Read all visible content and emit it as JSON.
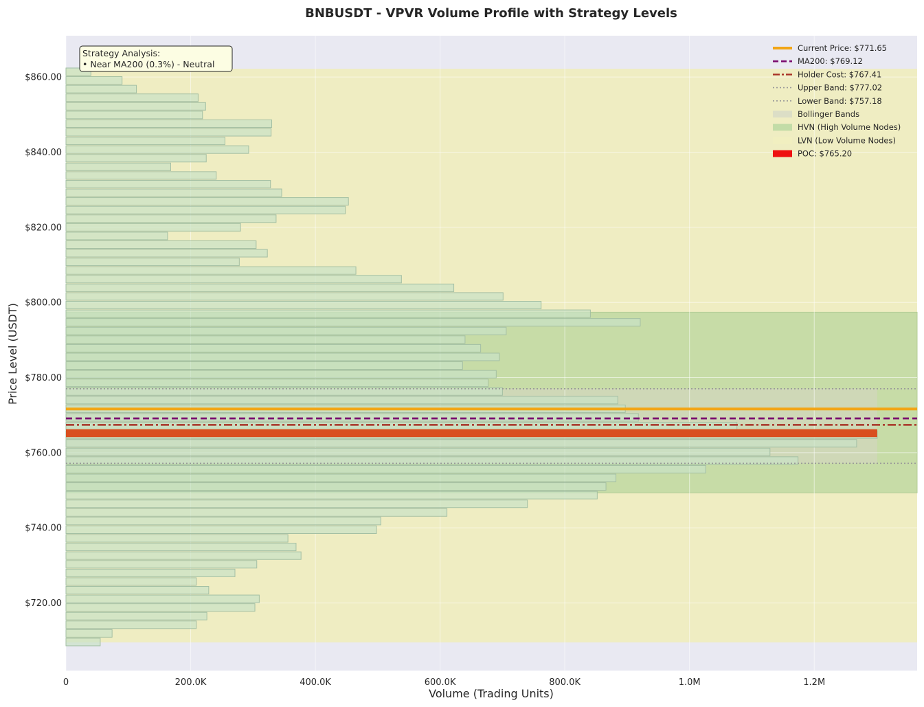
{
  "chart_data": {
    "type": "bar",
    "orientation": "horizontal",
    "title": "BNBUSDT - VPVR Volume Profile with Strategy Levels",
    "xlabel": "Volume (Trading Units)",
    "ylabel": "Price Level (USDT)",
    "xlim": [
      0,
      1365000
    ],
    "ylim": [
      702,
      871
    ],
    "x_ticks": [
      {
        "value": 0,
        "label": "0"
      },
      {
        "value": 200000,
        "label": "200.0K"
      },
      {
        "value": 400000,
        "label": "400.0K"
      },
      {
        "value": 600000,
        "label": "600.0K"
      },
      {
        "value": 800000,
        "label": "800.0K"
      },
      {
        "value": 1000000,
        "label": "1.0M"
      },
      {
        "value": 1200000,
        "label": "1.2M"
      }
    ],
    "y_ticks": [
      {
        "value": 720,
        "label": "$720.00"
      },
      {
        "value": 740,
        "label": "$740.00"
      },
      {
        "value": 760,
        "label": "$760.00"
      },
      {
        "value": 780,
        "label": "$780.00"
      },
      {
        "value": 800,
        "label": "$800.00"
      },
      {
        "value": 820,
        "label": "$820.00"
      },
      {
        "value": 840,
        "label": "$840.00"
      },
      {
        "value": 860,
        "label": "$860.00"
      }
    ],
    "grid": true,
    "legend_position": "top-right",
    "bin_height": 2.29,
    "bins": [
      {
        "price": 709.6,
        "volume": 55000
      },
      {
        "price": 711.9,
        "volume": 74000
      },
      {
        "price": 714.2,
        "volume": 209000
      },
      {
        "price": 716.5,
        "volume": 226000
      },
      {
        "price": 718.8,
        "volume": 303000
      },
      {
        "price": 721.1,
        "volume": 310000
      },
      {
        "price": 723.4,
        "volume": 229000
      },
      {
        "price": 725.7,
        "volume": 209000
      },
      {
        "price": 728.0,
        "volume": 271000
      },
      {
        "price": 730.3,
        "volume": 306000
      },
      {
        "price": 732.6,
        "volume": 377000
      },
      {
        "price": 734.9,
        "volume": 369000
      },
      {
        "price": 737.2,
        "volume": 356000
      },
      {
        "price": 739.5,
        "volume": 498000
      },
      {
        "price": 741.8,
        "volume": 505000
      },
      {
        "price": 744.1,
        "volume": 611000
      },
      {
        "price": 746.4,
        "volume": 740000
      },
      {
        "price": 748.7,
        "volume": 852000
      },
      {
        "price": 751.0,
        "volume": 866000
      },
      {
        "price": 753.3,
        "volume": 882000
      },
      {
        "price": 755.6,
        "volume": 1026000
      },
      {
        "price": 757.9,
        "volume": 1174000
      },
      {
        "price": 760.2,
        "volume": 1129000
      },
      {
        "price": 762.5,
        "volume": 1268000
      },
      {
        "price": 764.8,
        "volume": 1301000
      },
      {
        "price": 767.1,
        "volume": 1076000
      },
      {
        "price": 769.4,
        "volume": 918000
      },
      {
        "price": 771.7,
        "volume": 897000
      },
      {
        "price": 774.0,
        "volume": 885000
      },
      {
        "price": 776.3,
        "volume": 700000
      },
      {
        "price": 778.6,
        "volume": 677000
      },
      {
        "price": 780.9,
        "volume": 690000
      },
      {
        "price": 783.2,
        "volume": 636000
      },
      {
        "price": 785.5,
        "volume": 695000
      },
      {
        "price": 787.8,
        "volume": 665000
      },
      {
        "price": 790.1,
        "volume": 640000
      },
      {
        "price": 792.4,
        "volume": 706000
      },
      {
        "price": 794.7,
        "volume": 921000
      },
      {
        "price": 797.0,
        "volume": 841000
      },
      {
        "price": 799.3,
        "volume": 762000
      },
      {
        "price": 801.6,
        "volume": 701000
      },
      {
        "price": 803.9,
        "volume": 622000
      },
      {
        "price": 806.2,
        "volume": 538000
      },
      {
        "price": 808.5,
        "volume": 465000
      },
      {
        "price": 810.8,
        "volume": 278000
      },
      {
        "price": 813.1,
        "volume": 323000
      },
      {
        "price": 815.4,
        "volume": 305000
      },
      {
        "price": 817.7,
        "volume": 163000
      },
      {
        "price": 820.0,
        "volume": 280000
      },
      {
        "price": 822.3,
        "volume": 337000
      },
      {
        "price": 824.6,
        "volume": 448000
      },
      {
        "price": 826.9,
        "volume": 453000
      },
      {
        "price": 829.2,
        "volume": 346000
      },
      {
        "price": 831.5,
        "volume": 328000
      },
      {
        "price": 833.8,
        "volume": 241000
      },
      {
        "price": 836.1,
        "volume": 168000
      },
      {
        "price": 838.4,
        "volume": 225000
      },
      {
        "price": 840.7,
        "volume": 293000
      },
      {
        "price": 843.0,
        "volume": 255000
      },
      {
        "price": 845.3,
        "volume": 329000
      },
      {
        "price": 847.6,
        "volume": 330000
      },
      {
        "price": 849.9,
        "volume": 219000
      },
      {
        "price": 852.2,
        "volume": 224000
      },
      {
        "price": 854.5,
        "volume": 212000
      },
      {
        "price": 856.8,
        "volume": 113000
      },
      {
        "price": 859.1,
        "volume": 90000
      },
      {
        "price": 861.4,
        "volume": 40000
      }
    ],
    "zones": {
      "lvn": {
        "from": 709.5,
        "to": 862.2
      },
      "hvn": {
        "from": 749.3,
        "to": 797.4
      },
      "bollinger": {
        "from": 757.18,
        "to": 777.02,
        "x_end": 1301000
      }
    },
    "levels": {
      "current_price": 771.65,
      "ma200": 769.12,
      "holder_cost": 767.41,
      "upper_band": 777.02,
      "lower_band": 757.18,
      "poc": 765.2
    },
    "legend": [
      {
        "key": "current_price",
        "label": "Current Price: $771.65",
        "style": "solid-thick",
        "color": "#f2a516"
      },
      {
        "key": "ma200",
        "label": "MA200: $769.12",
        "style": "dashed",
        "color": "#7a0a6e"
      },
      {
        "key": "holder_cost",
        "label": "Holder Cost: $767.41",
        "style": "dashdot",
        "color": "#a83226"
      },
      {
        "key": "upper_band",
        "label": "Upper Band: $777.02",
        "style": "dotted",
        "color": "#999999"
      },
      {
        "key": "lower_band",
        "label": "Lower Band: $757.18",
        "style": "dotted",
        "color": "#999999"
      },
      {
        "key": "bollinger",
        "label": "Bollinger Bands",
        "style": "patch",
        "color": "#d9dcc6"
      },
      {
        "key": "hvn",
        "label": "HVN (High Volume Nodes)",
        "style": "patch",
        "color": "#bcd9a4"
      },
      {
        "key": "lvn",
        "label": "LVN (Low Volume Nodes)",
        "style": "patch",
        "color": "#f1eec0"
      },
      {
        "key": "poc",
        "label": "POC: $765.20",
        "style": "patch-solid",
        "color": "#ee1111"
      }
    ],
    "annotation": {
      "title": "Strategy Analysis:",
      "lines": [
        "• Near MA200 (0.3%) - Neutral"
      ]
    },
    "colors": {
      "plot_bg": "#e9e9f2",
      "lvn_fill": "#efedc2",
      "hvn_fill": "#c7dca7",
      "bollinger_fill": "#d6d6c4",
      "bar_fill": "#c9e2c6",
      "bar_stroke": "#a3bfa3",
      "poc_bar": "#d94f1f"
    }
  }
}
